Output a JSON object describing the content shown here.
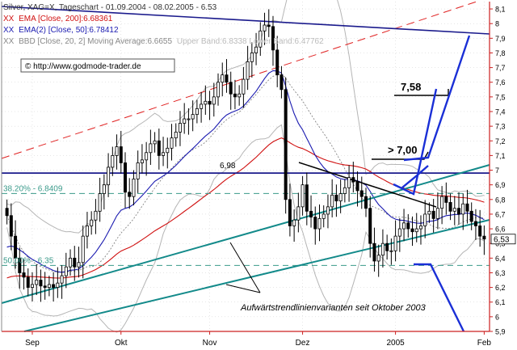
{
  "chart_data": {
    "type": "candlestick",
    "legend": {
      "title": "Silver, XAG=X, Tageschart - 01.09.2004 - 08.02.2005 - 6.53",
      "entries": [
        {
          "marker": "XX",
          "text": "EMA [Close, 200]:6.68361",
          "color": "#d01010"
        },
        {
          "marker": "XX",
          "text": "EMA(2) [Close, 50]:6.78412",
          "color": "#1a1ab0"
        },
        {
          "marker": "XX",
          "text": "BBD [Close, 20, 2] Moving Average:6.6655",
          "color": "#888888"
        },
        {
          "marker": "",
          "text": "Upper Band:6.8338 Lower Band:6.47762",
          "color": "#bbbbbb"
        }
      ],
      "source": "© http://www.godmode-trader.de"
    },
    "x_labels": [
      {
        "label": "Sep",
        "t": 6
      },
      {
        "label": "Okt",
        "t": 27
      },
      {
        "label": "Nov",
        "t": 48
      },
      {
        "label": "Dez",
        "t": 70
      },
      {
        "label": "2005",
        "t": 92
      },
      {
        "label": "Feb",
        "t": 113
      }
    ],
    "y_axis": {
      "min": 5.9,
      "max": 8.15,
      "ticks": [
        5.9,
        6.0,
        6.1,
        6.2,
        6.3,
        6.4,
        6.5,
        6.6,
        6.7,
        6.8,
        6.9,
        7.0,
        7.1,
        7.2,
        7.3,
        7.4,
        7.5,
        7.6,
        7.7,
        7.8,
        7.9,
        8.0,
        8.1
      ],
      "tick_labels": [
        "5,9",
        "6",
        "6,1",
        "6,2",
        "6,3",
        "6,4",
        "6,5",
        "6,6",
        "6,7",
        "6,8",
        "6,9",
        "7",
        "7,1",
        "7,2",
        "7,3",
        "7,4",
        "7,5",
        "7,6",
        "7,7",
        "7,8",
        "7,9",
        "8",
        "8,1"
      ],
      "last_price_label": "6,53",
      "last_price": 6.53
    },
    "closes": [
      6.69,
      6.55,
      6.4,
      6.3,
      6.27,
      6.2,
      6.22,
      6.25,
      6.21,
      6.2,
      6.22,
      6.2,
      6.23,
      6.28,
      6.34,
      6.4,
      6.34,
      6.37,
      6.55,
      6.62,
      6.66,
      6.72,
      6.84,
      6.9,
      7.02,
      7.1,
      7.16,
      7.05,
      6.85,
      6.82,
      6.94,
      7.05,
      7.07,
      7.12,
      7.18,
      7.2,
      7.1,
      7.12,
      7.15,
      7.22,
      7.26,
      7.32,
      7.35,
      7.35,
      7.38,
      7.42,
      7.45,
      7.47,
      7.45,
      7.5,
      7.6,
      7.65,
      7.6,
      7.52,
      7.5,
      7.52,
      7.62,
      7.74,
      7.8,
      7.84,
      7.95,
      7.99,
      7.98,
      7.82,
      7.65,
      7.55,
      6.8,
      6.62,
      6.66,
      6.75,
      6.9,
      6.72,
      6.68,
      6.6,
      6.67,
      6.7,
      6.75,
      6.83,
      6.79,
      6.84,
      6.88,
      6.95,
      6.92,
      6.86,
      6.82,
      6.74,
      6.5,
      6.38,
      6.42,
      6.5,
      6.45,
      6.45,
      6.55,
      6.6,
      6.64,
      6.6,
      6.58,
      6.6,
      6.62,
      6.7,
      6.72,
      6.67,
      6.74,
      6.82,
      6.78,
      6.72,
      6.74,
      6.7,
      6.77,
      6.72,
      6.65,
      6.62,
      6.55,
      6.53
    ],
    "reference_lines": {
      "horizontal_solid_navy": 6.98,
      "fib_38": {
        "label": "38.20% - 6.8409",
        "value": 6.8409
      },
      "fib_50": {
        "label": "50.00% - 6.35",
        "value": 6.35
      },
      "level_698_label": "6,98"
    },
    "annotations": {
      "target_upper": "7,58",
      "target_break": "> 7,00",
      "trendline_note": "Aufwärtstrendlinienvarianten seit Oktober 2003"
    },
    "colors": {
      "candle_outline": "#000000",
      "candle_up_fill": "#ffffff",
      "ema200": "#d01010",
      "ema50": "#1a1ab0",
      "bollinger": "#888888",
      "bollinger_ma": "#777777",
      "trendline_teal": "#138a8a",
      "resistance_red_dashed": "#e02020",
      "resistance_navy": "#1a1a8c",
      "fib_dashed": "#3a9a8a",
      "target_arrows": "#1a2fd6",
      "axis": "#cc2020",
      "grid": "#cccccc"
    }
  }
}
